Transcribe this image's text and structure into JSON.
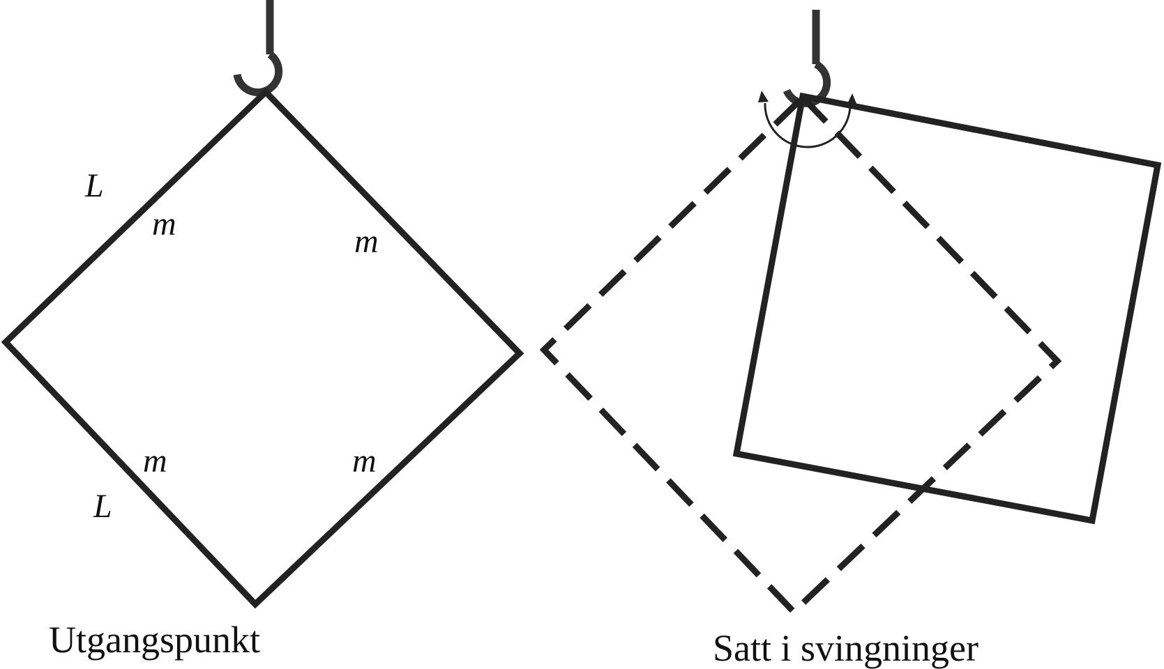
{
  "colors": {
    "stroke": "#222222",
    "hook": "#333333",
    "text": "#111111"
  },
  "left_figure": {
    "caption": "Utgangspunkt",
    "side_labels": [
      "L",
      "L"
    ],
    "mass_labels": [
      "m",
      "m",
      "m",
      "m"
    ]
  },
  "right_figure": {
    "caption": "Satt i svingninger"
  },
  "icons": {
    "hook": "hook-icon",
    "rotation": "rotation-arrow-icon"
  }
}
